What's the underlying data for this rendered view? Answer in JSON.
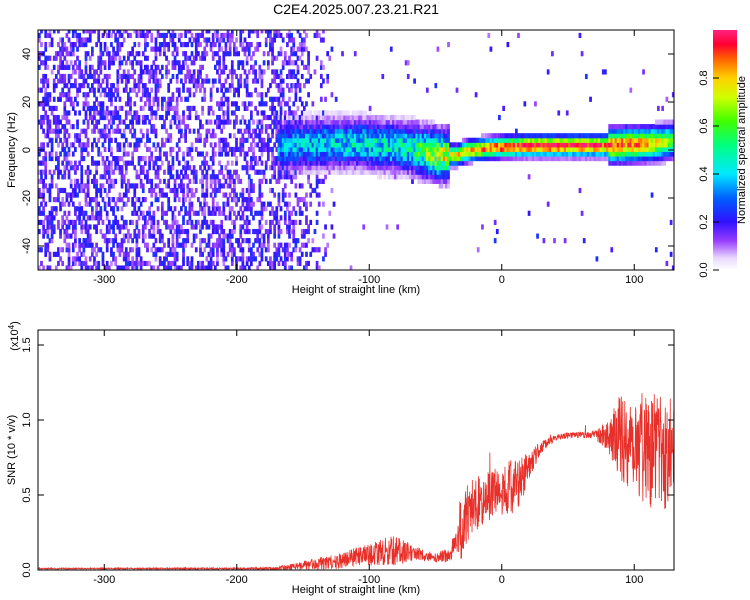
{
  "title": "C2E4.2025.007.23.21.R21",
  "chart_data": [
    {
      "type": "heatmap",
      "xlabel": "Height of straight line (km)",
      "ylabel": "Frequency (Hz)",
      "xlim": [
        -350,
        130
      ],
      "ylim": [
        -50,
        50
      ],
      "xticks": [
        -300,
        -200,
        -100,
        0,
        100
      ],
      "xtick_labels": [
        "-300",
        "-200",
        "-100",
        "0",
        "100"
      ],
      "yticks": [
        -40,
        -20,
        0,
        20,
        40
      ],
      "ytick_labels": [
        "-40",
        "-20",
        "0",
        "20",
        "40"
      ],
      "colorbar": {
        "label": "Normalized spectral amplitude",
        "range": [
          0,
          1
        ],
        "ticks": [
          0.0,
          0.2,
          0.4,
          0.6,
          0.8
        ],
        "tick_labels": [
          "0.0",
          "0.2",
          "0.4",
          "0.6",
          "0.8"
        ]
      },
      "ridge": {
        "x": [
          -170,
          -150,
          -130,
          -110,
          -90,
          -70,
          -55,
          -45,
          -35,
          -25,
          -10,
          0,
          20,
          40,
          60,
          80,
          100,
          115,
          130
        ],
        "freq": [
          1,
          1.5,
          2,
          2,
          1,
          0,
          -2,
          -3,
          -3,
          -1,
          0,
          0.5,
          1,
          1,
          1,
          1,
          1.5,
          2,
          3
        ],
        "amplitude": [
          0.4,
          0.45,
          0.45,
          0.5,
          0.5,
          0.55,
          0.75,
          0.8,
          0.8,
          0.85,
          0.9,
          0.95,
          1.0,
          1.0,
          1.0,
          0.95,
          0.9,
          0.8,
          0.6
        ]
      },
      "noise_region": {
        "x_start": -350,
        "x_end": -170,
        "level": 0.12
      },
      "grid": false
    },
    {
      "type": "line",
      "xlabel": "Height of straight line (km)",
      "ylabel": "SNR (10 * v/v)",
      "multiplier_label": "(x10",
      "multiplier_exponent": "4",
      "xlim": [
        -350,
        130
      ],
      "ylim": [
        0,
        1.6
      ],
      "xticks": [
        -300,
        -200,
        -100,
        0,
        100
      ],
      "xtick_labels": [
        "-300",
        "-200",
        "-100",
        "0",
        "100"
      ],
      "yticks": [
        0.0,
        0.5,
        1.0,
        1.5
      ],
      "ytick_labels": [
        "0.0",
        "0.5",
        "1.0",
        "1.5"
      ],
      "series_color": "#e8302a",
      "envelope": {
        "x": [
          -350,
          -300,
          -200,
          -170,
          -160,
          -150,
          -130,
          -110,
          -100,
          -90,
          -80,
          -70,
          -60,
          -50,
          -40,
          -35,
          -30,
          -25,
          -20,
          -15,
          -10,
          -5,
          0,
          5,
          10,
          15,
          20,
          30,
          40,
          50,
          60,
          70,
          80,
          90,
          100,
          110,
          120,
          130
        ],
        "baseline": [
          0.01,
          0.01,
          0.01,
          0.01,
          0.02,
          0.03,
          0.05,
          0.09,
          0.1,
          0.12,
          0.13,
          0.12,
          0.1,
          0.08,
          0.1,
          0.18,
          0.3,
          0.38,
          0.45,
          0.45,
          0.48,
          0.52,
          0.5,
          0.55,
          0.58,
          0.6,
          0.7,
          0.82,
          0.88,
          0.9,
          0.9,
          0.9,
          0.9,
          0.88,
          0.86,
          0.82,
          0.8,
          0.8
        ],
        "spread": [
          0.004,
          0.004,
          0.005,
          0.01,
          0.02,
          0.03,
          0.05,
          0.06,
          0.07,
          0.09,
          0.1,
          0.06,
          0.04,
          0.03,
          0.05,
          0.1,
          0.25,
          0.2,
          0.2,
          0.15,
          0.18,
          0.16,
          0.15,
          0.18,
          0.2,
          0.15,
          0.1,
          0.04,
          0.02,
          0.02,
          0.02,
          0.03,
          0.1,
          0.3,
          0.35,
          0.4,
          0.4,
          0.38
        ]
      }
    }
  ]
}
